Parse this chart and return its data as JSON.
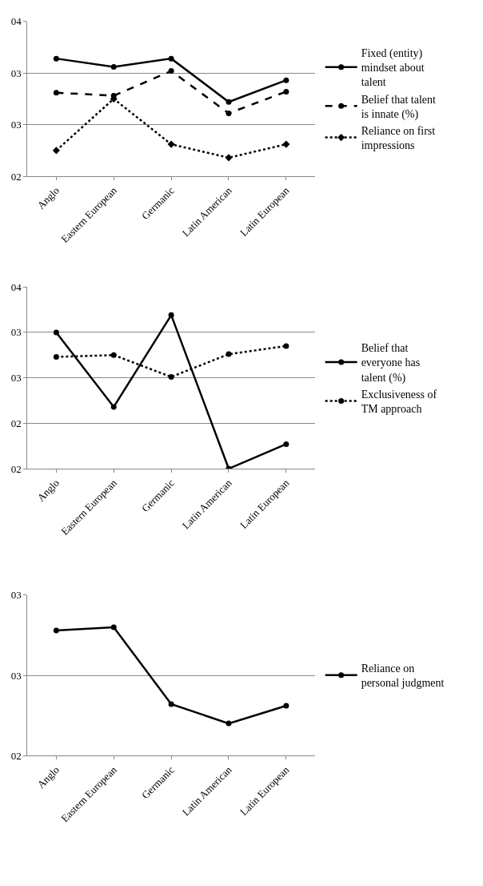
{
  "chart_data": [
    {
      "type": "line",
      "categories": [
        "Anglo",
        "Eastern European",
        "Germanic",
        "Latin American",
        "Latin European"
      ],
      "series": [
        {
          "name": "Fixed (entity) mindset about talent",
          "color": "#000000",
          "line_style": "solid",
          "marker": "circle",
          "values": [
            3.14,
            3.06,
            3.14,
            2.72,
            2.93
          ]
        },
        {
          "name": "Belief that talent is innate (%)",
          "color": "#000000",
          "line_style": "dashed",
          "marker": "circle",
          "values": [
            2.81,
            2.78,
            3.02,
            2.61,
            2.82
          ]
        },
        {
          "name": "Reliance on first impressions",
          "color": "#000000",
          "line_style": "dotted",
          "marker": "diamond",
          "values": [
            2.25,
            2.75,
            2.31,
            2.18,
            2.31
          ]
        }
      ],
      "ylim": [
        2,
        3.5
      ],
      "yticks": [
        {
          "value": 2,
          "label": "02"
        },
        {
          "value": 2.5,
          "label": "03"
        },
        {
          "value": 3,
          "label": "03"
        },
        {
          "value": 3.5,
          "label": "04"
        }
      ],
      "grid": "y",
      "legend": "right"
    },
    {
      "type": "line",
      "categories": [
        "Anglo",
        "Eastern European",
        "Germanic",
        "Latin American",
        "Latin European"
      ],
      "series": [
        {
          "name": "Belief that everyone has talent (%)",
          "color": "#000000",
          "line_style": "solid",
          "marker": "circle",
          "values": [
            3.0,
            2.18,
            3.19,
            1.5,
            1.77
          ]
        },
        {
          "name": "Exclusiveness of TM approach",
          "color": "#000000",
          "line_style": "dotted",
          "marker": "circle",
          "values": [
            2.73,
            2.75,
            2.51,
            2.76,
            2.85
          ]
        }
      ],
      "ylim": [
        1.5,
        3.5
      ],
      "yticks": [
        {
          "value": 1.5,
          "label": "02"
        },
        {
          "value": 2,
          "label": "02"
        },
        {
          "value": 2.5,
          "label": "03"
        },
        {
          "value": 3,
          "label": "03"
        },
        {
          "value": 3.5,
          "label": "04"
        }
      ],
      "grid": "y",
      "legend": "right"
    },
    {
      "type": "line",
      "categories": [
        "Anglo",
        "Eastern European",
        "Germanic",
        "Latin American",
        "Latin European"
      ],
      "series": [
        {
          "name": "Reliance on personal judgment",
          "color": "#000000",
          "line_style": "solid",
          "marker": "circle",
          "values": [
            2.78,
            2.8,
            2.32,
            2.2,
            2.31
          ]
        }
      ],
      "ylim": [
        2,
        3
      ],
      "yticks": [
        {
          "value": 2,
          "label": "02"
        },
        {
          "value": 2.5,
          "label": "03"
        },
        {
          "value": 3,
          "label": "03"
        }
      ],
      "grid": "y",
      "legend": "right"
    }
  ]
}
